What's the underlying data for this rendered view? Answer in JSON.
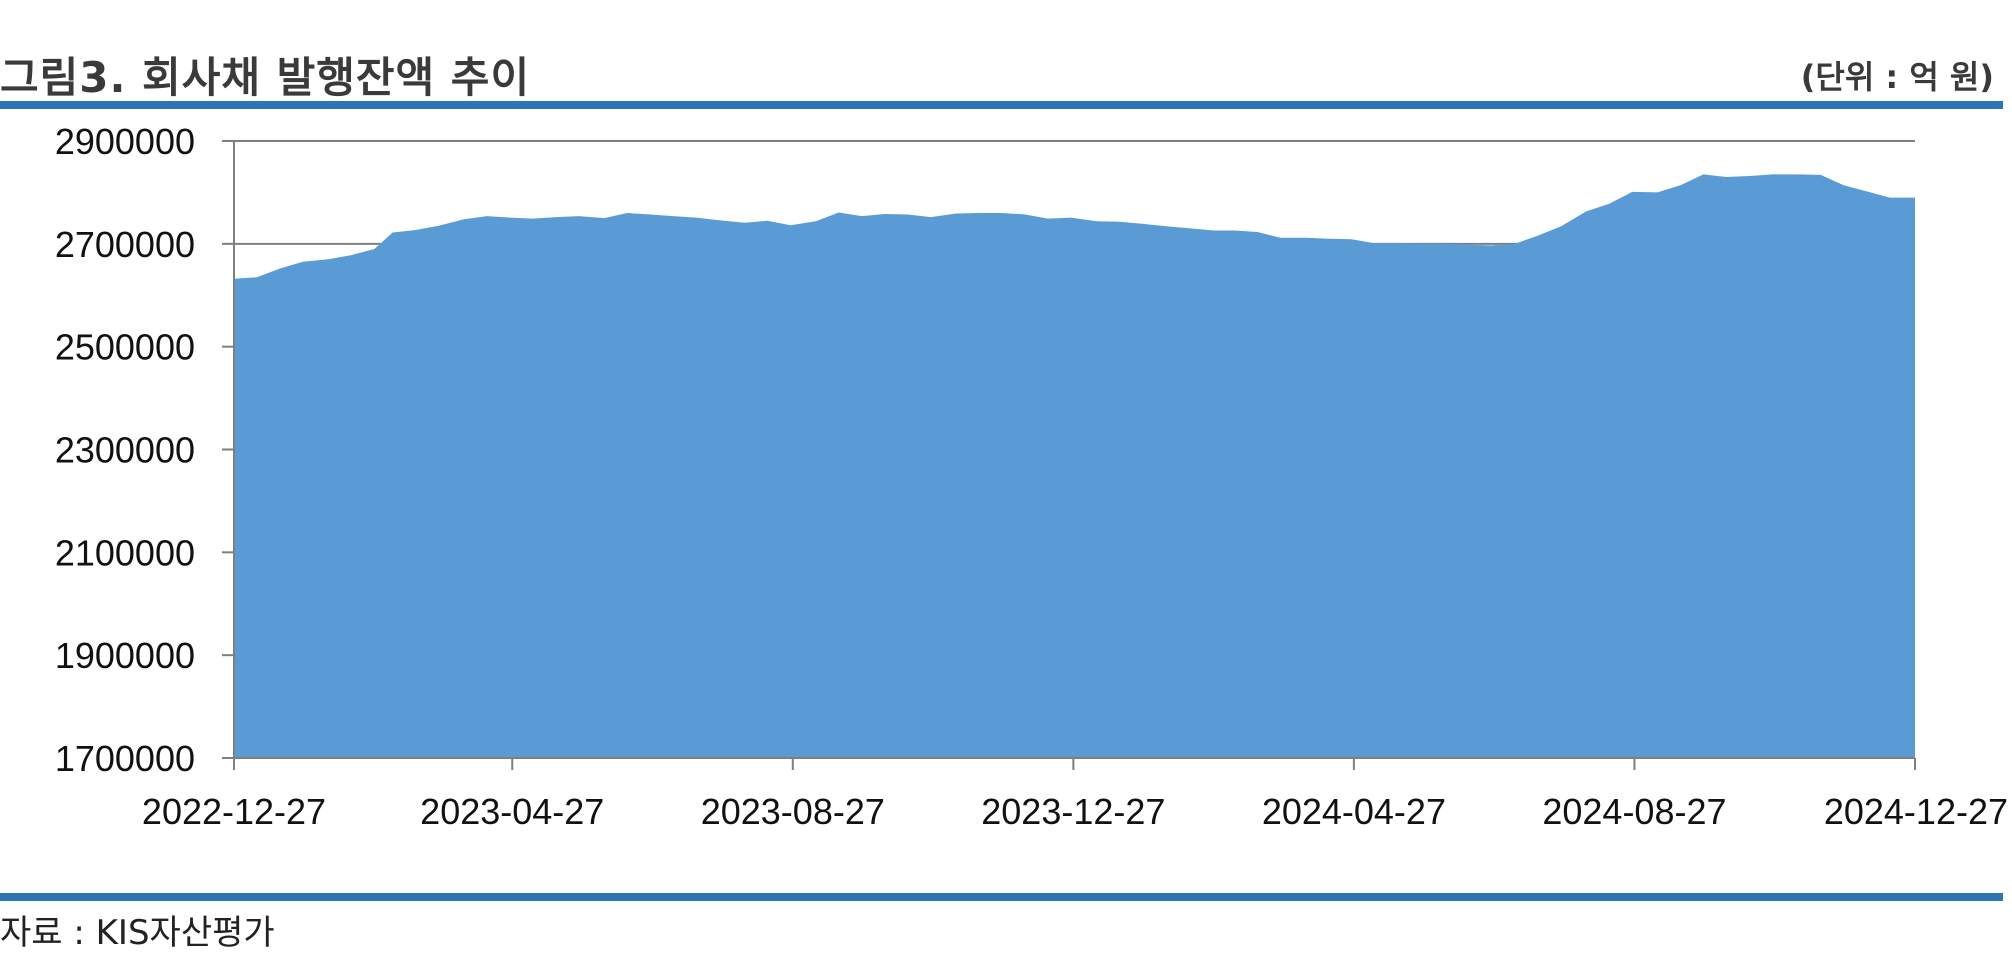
{
  "header": {
    "title": "그림3. 회사채 발행잔액 추이",
    "unit": "(단위 : 억 원)"
  },
  "footer": {
    "source": "자료 : KIS자산평가"
  },
  "colors": {
    "area_fill": "#5b9bd5",
    "rule": "#2e75b6",
    "gridline": "#7f7f7f"
  },
  "chart_data": {
    "type": "area",
    "title": "",
    "xlabel": "",
    "ylabel": "",
    "ylim": [
      1700000,
      2900000
    ],
    "yticks": [
      1700000,
      1900000,
      2100000,
      2300000,
      2500000,
      2700000,
      2900000
    ],
    "ytick_labels": [
      "1700000",
      "1900000",
      "2100000",
      "2300000",
      "2500000",
      "2700000",
      "2900000"
    ],
    "xlim": [
      "2022-12-27",
      "2024-12-27"
    ],
    "xticks": [
      "2022-12-27",
      "2023-04-27",
      "2023-08-27",
      "2023-12-27",
      "2024-04-27",
      "2024-08-27",
      "2024-12-27"
    ],
    "grid": "horizontal gridline at 2700000 and 2900000",
    "series": [
      {
        "values": [
          [
            "2022-12-27",
            2632000
          ],
          [
            "2023-01-06",
            2635000
          ],
          [
            "2023-01-16",
            2652000
          ],
          [
            "2023-01-26",
            2665000
          ],
          [
            "2023-02-06",
            2670000
          ],
          [
            "2023-02-16",
            2678000
          ],
          [
            "2023-02-26",
            2690000
          ],
          [
            "2023-03-06",
            2722000
          ],
          [
            "2023-03-16",
            2727000
          ],
          [
            "2023-03-26",
            2735000
          ],
          [
            "2023-04-06",
            2748000
          ],
          [
            "2023-04-16",
            2754000
          ],
          [
            "2023-04-26",
            2751000
          ],
          [
            "2023-05-06",
            2749000
          ],
          [
            "2023-05-16",
            2752000
          ],
          [
            "2023-05-26",
            2754000
          ],
          [
            "2023-06-06",
            2750000
          ],
          [
            "2023-06-16",
            2760000
          ],
          [
            "2023-06-26",
            2757000
          ],
          [
            "2023-07-06",
            2754000
          ],
          [
            "2023-07-16",
            2751000
          ],
          [
            "2023-07-26",
            2746000
          ],
          [
            "2023-08-06",
            2741000
          ],
          [
            "2023-08-16",
            2745000
          ],
          [
            "2023-08-26",
            2736000
          ],
          [
            "2023-09-06",
            2744000
          ],
          [
            "2023-09-16",
            2761000
          ],
          [
            "2023-09-26",
            2754000
          ],
          [
            "2023-10-06",
            2758000
          ],
          [
            "2023-10-16",
            2757000
          ],
          [
            "2023-10-26",
            2752000
          ],
          [
            "2023-11-06",
            2759000
          ],
          [
            "2023-11-16",
            2760000
          ],
          [
            "2023-11-26",
            2760000
          ],
          [
            "2023-12-06",
            2757000
          ],
          [
            "2023-12-16",
            2749000
          ],
          [
            "2023-12-26",
            2751000
          ],
          [
            "2024-01-06",
            2744000
          ],
          [
            "2024-01-16",
            2743000
          ],
          [
            "2024-01-26",
            2739000
          ],
          [
            "2024-02-06",
            2734000
          ],
          [
            "2024-02-16",
            2730000
          ],
          [
            "2024-02-26",
            2726000
          ],
          [
            "2024-03-06",
            2726000
          ],
          [
            "2024-03-16",
            2723000
          ],
          [
            "2024-03-26",
            2712000
          ],
          [
            "2024-04-06",
            2712000
          ],
          [
            "2024-04-16",
            2710000
          ],
          [
            "2024-04-26",
            2709000
          ],
          [
            "2024-05-06",
            2701000
          ],
          [
            "2024-05-16",
            2701000
          ],
          [
            "2024-05-26",
            2700000
          ],
          [
            "2024-06-06",
            2700000
          ],
          [
            "2024-06-16",
            2698000
          ],
          [
            "2024-06-26",
            2697000
          ],
          [
            "2024-07-06",
            2700000
          ],
          [
            "2024-07-16",
            2716000
          ],
          [
            "2024-07-26",
            2734000
          ],
          [
            "2024-08-06",
            2763000
          ],
          [
            "2024-08-16",
            2778000
          ],
          [
            "2024-08-26",
            2801000
          ],
          [
            "2024-09-06",
            2800000
          ],
          [
            "2024-09-16",
            2814000
          ],
          [
            "2024-09-26",
            2835000
          ],
          [
            "2024-10-06",
            2830000
          ],
          [
            "2024-10-16",
            2832000
          ],
          [
            "2024-10-26",
            2835000
          ],
          [
            "2024-11-06",
            2835000
          ],
          [
            "2024-11-16",
            2834000
          ],
          [
            "2024-11-26",
            2814000
          ],
          [
            "2024-12-06",
            2802000
          ],
          [
            "2024-12-16",
            2790000
          ],
          [
            "2024-12-26",
            2790000
          ]
        ]
      }
    ]
  }
}
